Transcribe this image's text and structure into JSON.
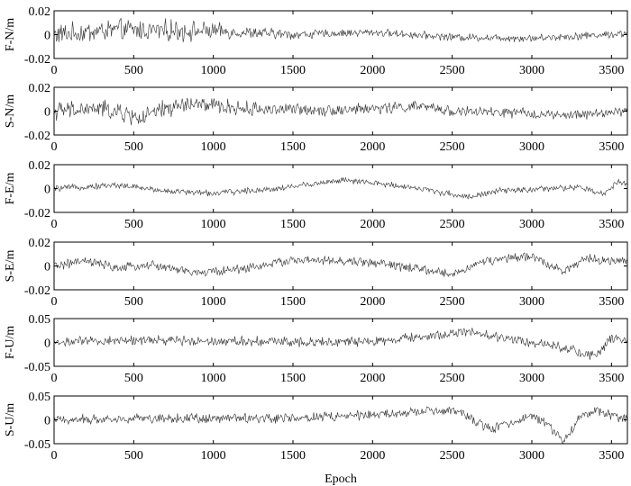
{
  "chart_data": [
    {
      "type": "line",
      "ylabel": "F-N/m",
      "xlabel": "",
      "xlim": [
        0,
        3600
      ],
      "ylim": [
        -0.02,
        0.02
      ],
      "xticks": [
        "0",
        "500",
        "1000",
        "1500",
        "2000",
        "2500",
        "3000",
        "3500"
      ],
      "yticks": [
        "0.02",
        "0",
        "-0.02"
      ],
      "series_color": "#333333",
      "trend": [
        [
          0,
          0.0
        ],
        [
          400,
          0.004
        ],
        [
          1000,
          0.003
        ],
        [
          1500,
          0.0
        ],
        [
          2000,
          0.002
        ],
        [
          2500,
          -0.002
        ],
        [
          3000,
          -0.003
        ],
        [
          3600,
          0.001
        ]
      ],
      "noise": [
        [
          0,
          0.007
        ],
        [
          800,
          0.007
        ],
        [
          1200,
          0.004
        ],
        [
          1800,
          0.0025
        ],
        [
          3600,
          0.0025
        ]
      ]
    },
    {
      "type": "line",
      "ylabel": "S-N/m",
      "xlabel": "",
      "xlim": [
        0,
        3600
      ],
      "ylim": [
        -0.02,
        0.02
      ],
      "xticks": [
        "0",
        "500",
        "1000",
        "1500",
        "2000",
        "2500",
        "3000",
        "3500"
      ],
      "yticks": [
        "0.02",
        "0",
        "-0.02"
      ],
      "series_color": "#333333",
      "trend": [
        [
          0,
          0.0
        ],
        [
          300,
          0.002
        ],
        [
          550,
          -0.006
        ],
        [
          700,
          0.002
        ],
        [
          850,
          0.006
        ],
        [
          1200,
          0.002
        ],
        [
          1800,
          0.001
        ],
        [
          2300,
          0.004
        ],
        [
          2500,
          0.0
        ],
        [
          3000,
          -0.002
        ],
        [
          3200,
          -0.004
        ],
        [
          3600,
          0.0
        ]
      ],
      "noise": [
        [
          0,
          0.006
        ],
        [
          800,
          0.006
        ],
        [
          1500,
          0.004
        ],
        [
          3600,
          0.003
        ]
      ]
    },
    {
      "type": "line",
      "ylabel": "F-E/m",
      "xlabel": "",
      "xlim": [
        0,
        3600
      ],
      "ylim": [
        -0.02,
        0.02
      ],
      "xticks": [
        "0",
        "500",
        "1000",
        "1500",
        "2000",
        "2500",
        "3000",
        "3500"
      ],
      "yticks": [
        "0.02",
        "0",
        "-0.02"
      ],
      "series_color": "#333333",
      "trend": [
        [
          0,
          0.0
        ],
        [
          400,
          0.003
        ],
        [
          700,
          -0.002
        ],
        [
          1000,
          -0.004
        ],
        [
          1400,
          0.0
        ],
        [
          1800,
          0.007
        ],
        [
          2200,
          0.002
        ],
        [
          2600,
          -0.007
        ],
        [
          2800,
          -0.002
        ],
        [
          3300,
          0.001
        ],
        [
          3450,
          -0.005
        ],
        [
          3550,
          0.007
        ],
        [
          3600,
          0.003
        ]
      ],
      "noise": [
        [
          0,
          0.002
        ],
        [
          3600,
          0.002
        ]
      ]
    },
    {
      "type": "line",
      "ylabel": "S-E/m",
      "xlabel": "",
      "xlim": [
        0,
        3600
      ],
      "ylim": [
        -0.02,
        0.02
      ],
      "xticks": [
        "0",
        "500",
        "1000",
        "1500",
        "2000",
        "2500",
        "3000",
        "3500"
      ],
      "yticks": [
        "0.02",
        "0",
        "-0.02"
      ],
      "series_color": "#333333",
      "trend": [
        [
          0,
          0.0
        ],
        [
          200,
          0.004
        ],
        [
          400,
          -0.002
        ],
        [
          600,
          0.001
        ],
        [
          900,
          -0.006
        ],
        [
          1200,
          -0.002
        ],
        [
          1500,
          0.005
        ],
        [
          2000,
          0.003
        ],
        [
          2500,
          -0.007
        ],
        [
          2700,
          0.004
        ],
        [
          3000,
          0.008
        ],
        [
          3200,
          -0.004
        ],
        [
          3350,
          0.006
        ],
        [
          3600,
          0.003
        ]
      ],
      "noise": [
        [
          0,
          0.003
        ],
        [
          3600,
          0.003
        ]
      ]
    },
    {
      "type": "line",
      "ylabel": "F-U/m",
      "xlabel": "",
      "xlim": [
        0,
        3600
      ],
      "ylim": [
        -0.05,
        0.05
      ],
      "xticks": [
        "0",
        "500",
        "1000",
        "1500",
        "2000",
        "2500",
        "3000",
        "3500"
      ],
      "yticks": [
        "0.05",
        "0",
        "-0.05"
      ],
      "series_color": "#333333",
      "trend": [
        [
          0,
          0.0
        ],
        [
          500,
          0.005
        ],
        [
          1500,
          0.002
        ],
        [
          2000,
          0.001
        ],
        [
          2600,
          0.022
        ],
        [
          3000,
          0.0
        ],
        [
          3200,
          -0.01
        ],
        [
          3400,
          -0.03
        ],
        [
          3500,
          0.01
        ],
        [
          3600,
          0.0
        ]
      ],
      "noise": [
        [
          0,
          0.008
        ],
        [
          3600,
          0.008
        ]
      ]
    },
    {
      "type": "line",
      "ylabel": "S-U/m",
      "xlabel": "Epoch",
      "xlim": [
        0,
        3600
      ],
      "ylim": [
        -0.05,
        0.05
      ],
      "xticks": [
        "0",
        "500",
        "1000",
        "1500",
        "2000",
        "2500",
        "3000",
        "3500"
      ],
      "yticks": [
        "0.05",
        "0",
        "-0.05"
      ],
      "series_color": "#333333",
      "trend": [
        [
          0,
          0.0
        ],
        [
          500,
          0.003
        ],
        [
          1500,
          0.004
        ],
        [
          2000,
          0.01
        ],
        [
          2500,
          0.02
        ],
        [
          2750,
          -0.02
        ],
        [
          3000,
          0.01
        ],
        [
          3100,
          -0.01
        ],
        [
          3200,
          -0.045
        ],
        [
          3300,
          0.005
        ],
        [
          3400,
          0.02
        ],
        [
          3600,
          0.0
        ]
      ],
      "noise": [
        [
          0,
          0.008
        ],
        [
          3600,
          0.008
        ]
      ]
    }
  ]
}
